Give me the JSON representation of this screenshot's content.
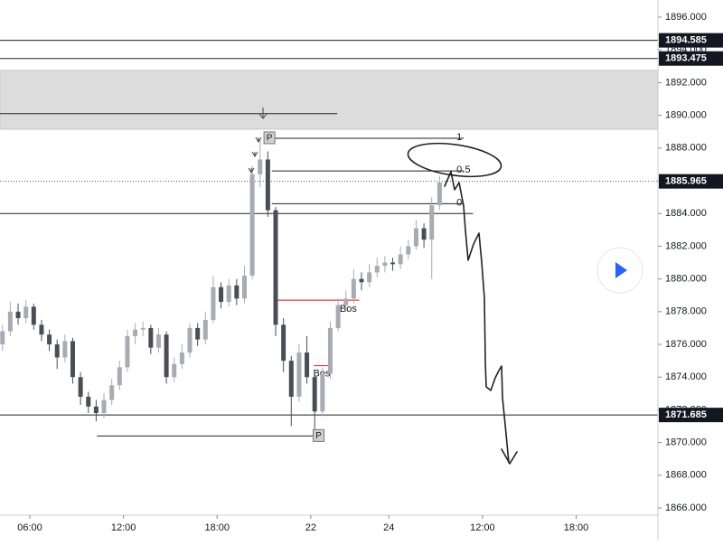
{
  "chart_data": {
    "type": "candlestick",
    "x": [
      -1.75,
      -1.25,
      -0.75,
      -0.25,
      0.25,
      0.75,
      1.25,
      1.75,
      2.25,
      2.75,
      3.25,
      3.75,
      4.25,
      4.75,
      5.25,
      5.75,
      6.25,
      6.75,
      7.25,
      7.75,
      8.25,
      8.75,
      9.25,
      9.75,
      10.25,
      10.75,
      11.25,
      11.75,
      12.25,
      12.75,
      13.25,
      13.75,
      14.25,
      14.75,
      15.25,
      15.75,
      16.25,
      16.75,
      17.25,
      17.75,
      18.25,
      18.75,
      19.25,
      19.75,
      20.25,
      20.75,
      21.25,
      21.75,
      22.25,
      22.75,
      23.25,
      23.75,
      24.25,
      24.75,
      25.25,
      25.75,
      26.25
    ],
    "open": [
      1876,
      1876.8,
      1878,
      1877.6,
      1878.3,
      1877.2,
      1876.6,
      1876,
      1875.2,
      1876.2,
      1874,
      1872.8,
      1872.2,
      1871.8,
      1872.6,
      1873.5,
      1874.6,
      1876.5,
      1876.9,
      1877,
      1875.8,
      1876.6,
      1874,
      1874.8,
      1875.5,
      1877,
      1876.3,
      1877.5,
      1879.5,
      1878.6,
      1879.6,
      1878.8,
      1880.2,
      1886.4,
      1887.3,
      1884.2,
      1877.2,
      1875,
      1872.8,
      1875.5,
      1874,
      1871.9,
      1874.2,
      1877,
      1878.4,
      1878.8,
      1880,
      1879.8,
      1880.4,
      1880.8,
      1881,
      1880.9,
      1881.5,
      1882,
      1883.1,
      1882.4,
      1884.5
    ],
    "high": [
      1877.2,
      1878.6,
      1878.5,
      1878.7,
      1878.5,
      1877.5,
      1876.9,
      1876.3,
      1876.6,
      1876.4,
      1874.3,
      1873.1,
      1872.6,
      1873,
      1873.9,
      1875,
      1876.9,
      1877.3,
      1877.4,
      1877.2,
      1877,
      1876.8,
      1875.2,
      1876,
      1877.3,
      1877.3,
      1878,
      1880.2,
      1879.8,
      1880,
      1880,
      1880.8,
      1886.9,
      1888.5,
      1887.8,
      1884.4,
      1877.6,
      1875.3,
      1876,
      1876.5,
      1874.4,
      1874.6,
      1877.4,
      1878.8,
      1879.3,
      1880.6,
      1880.4,
      1880.9,
      1881.3,
      1881.4,
      1881.3,
      1882,
      1882.4,
      1883.6,
      1883.4,
      1885,
      1886.3
    ],
    "low": [
      1875.6,
      1876.5,
      1877.2,
      1877.3,
      1876.9,
      1876.2,
      1875.6,
      1874.5,
      1874.9,
      1873.6,
      1872.3,
      1871.8,
      1871.3,
      1871.5,
      1872.3,
      1873.2,
      1874.3,
      1876,
      1876.5,
      1875.4,
      1875.5,
      1873.6,
      1873.7,
      1874.5,
      1875.2,
      1875.9,
      1876,
      1877.3,
      1878.2,
      1878.3,
      1878.4,
      1878.5,
      1880,
      1885.6,
      1883.8,
      1876.5,
      1874.3,
      1871,
      1872.5,
      1873.6,
      1870.7,
      1871.6,
      1873.9,
      1876.8,
      1878,
      1878.5,
      1879.3,
      1879.5,
      1880.1,
      1880.4,
      1880.5,
      1880.6,
      1881.2,
      1881.8,
      1881.9,
      1880,
      1884.2
    ],
    "close": [
      1876.8,
      1878,
      1877.6,
      1878.3,
      1877.2,
      1876.6,
      1876,
      1875.2,
      1876.2,
      1874,
      1872.8,
      1872.2,
      1871.8,
      1872.6,
      1873.5,
      1874.6,
      1876.5,
      1876.9,
      1877,
      1875.8,
      1876.6,
      1874,
      1874.8,
      1875.5,
      1877,
      1876.3,
      1877.5,
      1879.5,
      1878.6,
      1879.6,
      1878.8,
      1880.2,
      1886.4,
      1887.3,
      1884.2,
      1877.2,
      1875,
      1872.8,
      1875.5,
      1874,
      1871.9,
      1874.2,
      1877,
      1878.4,
      1878.8,
      1880,
      1879.8,
      1880.4,
      1880.8,
      1881,
      1880.9,
      1881.5,
      1882,
      1883.1,
      1882.4,
      1884.5,
      1885.9
    ],
    "up_color": "#a8abb3",
    "down_color": "#4a4d55",
    "xlim": [
      -1.91,
      40.24
    ],
    "xticks": [
      {
        "value": 0,
        "label": "06:00"
      },
      {
        "value": 6,
        "label": "12:00"
      },
      {
        "value": 12,
        "label": "18:00"
      },
      {
        "value": 18,
        "label": "22"
      },
      {
        "value": 23,
        "label": "24"
      },
      {
        "value": 29,
        "label": "12:00"
      },
      {
        "value": 35,
        "label": "18:00"
      }
    ],
    "ylim": [
      1865.56,
      1897.05
    ],
    "yticks": [
      {
        "value": 1866,
        "label": "1866.000"
      },
      {
        "value": 1868,
        "label": "1868.000"
      },
      {
        "value": 1870,
        "label": "1870.000"
      },
      {
        "value": 1872,
        "label": "1872.000"
      },
      {
        "value": 1874,
        "label": "1874.000"
      },
      {
        "value": 1876,
        "label": "1876.000"
      },
      {
        "value": 1878,
        "label": "1878.000"
      },
      {
        "value": 1880,
        "label": "1880.000"
      },
      {
        "value": 1882,
        "label": "1882.000"
      },
      {
        "value": 1884,
        "label": "1884.000"
      },
      {
        "value": 1886,
        "label": "1886.000"
      },
      {
        "value": 1888,
        "label": "1888.000"
      },
      {
        "value": 1890,
        "label": "1890.000"
      },
      {
        "value": 1892,
        "label": "1892.000"
      },
      {
        "value": 1894,
        "label": "1894.000"
      },
      {
        "value": 1896,
        "label": "1896.000"
      }
    ],
    "zone": [
      1889.15,
      1892.75
    ],
    "price_lines": [
      1894.585,
      1893.475,
      1871.685
    ],
    "current_price": 1885.965,
    "h_lines": [
      {
        "y": 1890.1,
        "x": [
          -1.91,
          19.7
        ]
      },
      {
        "y": 1884.0,
        "x": [
          -1.91,
          28.4
        ]
      },
      {
        "y": 1870.4,
        "x": [
          4.3,
          18.8
        ]
      }
    ],
    "fib": {
      "x": [
        15.5,
        27.8
      ],
      "levels": [
        {
          "value": 1888.6,
          "label": "1"
        },
        {
          "value": 1886.6,
          "label": "0.5"
        },
        {
          "value": 1884.6,
          "label": "0"
        }
      ]
    },
    "bos": [
      {
        "label": "Bos",
        "y": 1878.7,
        "x": [
          15.9,
          21.1
        ]
      },
      {
        "label": "Bos",
        "y": 1874.7,
        "x": [
          18.2,
          19.2
        ]
      }
    ],
    "pivots": [
      {
        "label": "P",
        "x": 15.35,
        "y": 1888.6
      },
      {
        "label": "P",
        "x": 18.5,
        "y": 1870.4
      }
    ]
  }
}
